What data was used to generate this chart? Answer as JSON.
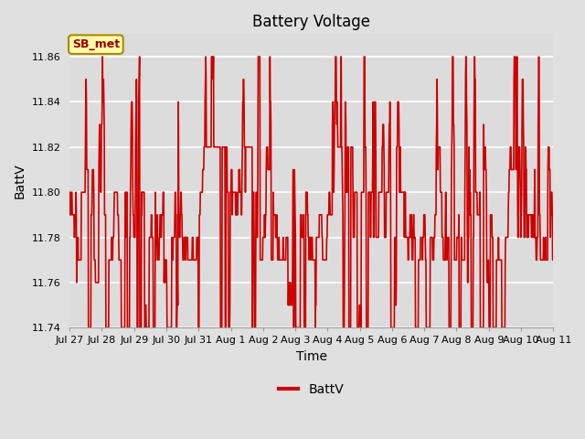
{
  "title": "Battery Voltage",
  "xlabel": "Time",
  "ylabel": "BattV",
  "ylim": [
    11.74,
    11.87
  ],
  "yticks": [
    11.74,
    11.76,
    11.78,
    11.8,
    11.82,
    11.84,
    11.86
  ],
  "xtick_labels": [
    "Jul 27",
    "Jul 28",
    "Jul 29",
    "Jul 30",
    "Jul 31",
    "Aug 1",
    "Aug 2",
    "Aug 3",
    "Aug 4",
    "Aug 5",
    "Aug 6",
    "Aug 7",
    "Aug 8",
    "Aug 9",
    "Aug 10",
    "Aug 11"
  ],
  "n_xticks": 16,
  "line_color": "#cc0000",
  "bg_color": "#e0e0e0",
  "plot_bg_color": "#dcdcdc",
  "legend_label": "BattV",
  "annotation_label": "SB_met",
  "annotation_bg": "#ffffaa",
  "annotation_border": "#aa8800",
  "title_fontsize": 12,
  "axis_fontsize": 10,
  "tick_fontsize": 8,
  "legend_fontsize": 10,
  "seed": 7,
  "n_days": 15,
  "samples_per_day": 96
}
